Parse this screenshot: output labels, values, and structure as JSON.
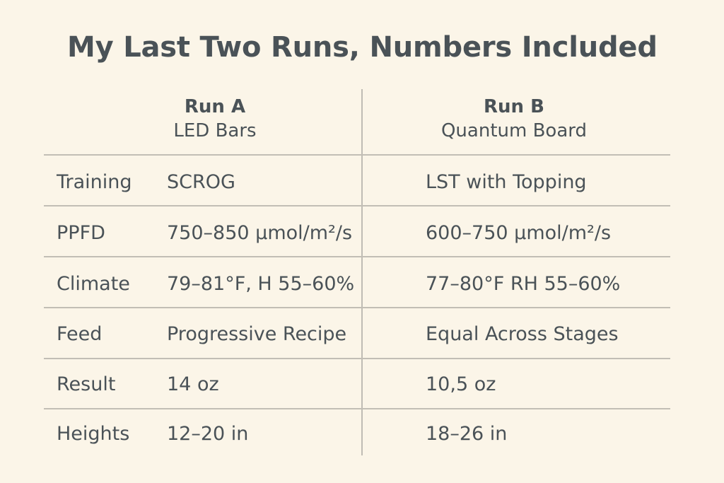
{
  "title": "My Last Two Runs, Numbers Included",
  "columns": [
    {
      "name": "Run A",
      "light": "LED Bars"
    },
    {
      "name": "Run B",
      "light": "Quantum Board"
    }
  ],
  "rows": [
    {
      "label": "Training",
      "a": "SCROG",
      "b": "LST with Topping"
    },
    {
      "label": "PPFD",
      "a": "750–850 μmol/m²/s",
      "b": "600–750 μmol/m²/s"
    },
    {
      "label": "Climate",
      "a": "79–81°F, H 55–60%",
      "b": "77–80°F RH 55–60%"
    },
    {
      "label": "Feed",
      "a": "Progressive Recipe",
      "b": "Equal Across Stages"
    },
    {
      "label": "Result",
      "a": "14 oz",
      "b": "10,5 oz"
    },
    {
      "label": "Heights",
      "a": "12–20 in",
      "b": "18–26 in"
    }
  ]
}
